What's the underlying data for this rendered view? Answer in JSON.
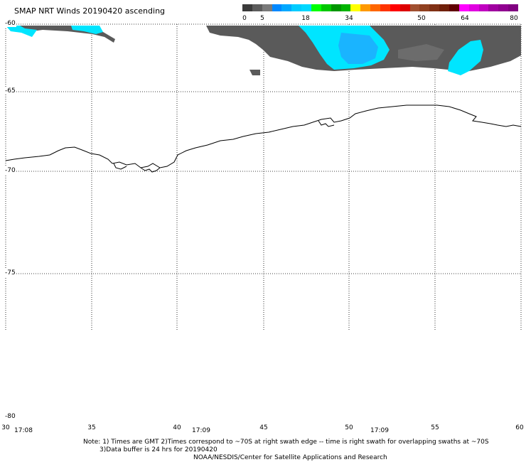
{
  "title": "SMAP NRT Winds 20190420 ascending",
  "colorbar": {
    "labels": [
      "0",
      "5",
      "18",
      "34",
      "50",
      "64",
      "80"
    ],
    "colors": [
      "#3b3b3b",
      "#5c5c5c",
      "#7a7a7a",
      "#0088ff",
      "#00a8ff",
      "#00ccff",
      "#00d8ff",
      "#00ff00",
      "#00c800",
      "#009600",
      "#00b400",
      "#ffff00",
      "#ff9900",
      "#ff6600",
      "#ff3300",
      "#ff0000",
      "#dd0000",
      "#a05030",
      "#904020",
      "#803015",
      "#70200a",
      "#600000",
      "#ff00ff",
      "#e000e0",
      "#c000c0",
      "#a000a0",
      "#900090",
      "#800080"
    ]
  },
  "colors": {
    "land": "#555555",
    "swath_gray": "#5a5a5a",
    "swath_cyan": "#00e5ff",
    "swath_blue": "#1ab4ff",
    "coast": "#000000",
    "grid": "#000000"
  },
  "axes": {
    "lon_labels": [
      "30",
      "35",
      "40",
      "45",
      "50",
      "55",
      "60"
    ],
    "lat_labels": [
      "-60",
      "-65",
      "-70",
      "-75",
      "-80"
    ]
  },
  "times": [
    "17:08",
    "17:09",
    "17:09"
  ],
  "notes": {
    "line1": "Note: 1) Times are GMT 2)Times correspond to ~70S at right swath edge -- time is right swath for overlapping swaths at ~70S",
    "line2": "3)Data buffer is 24 hrs for 20190420",
    "line3": "NOAA/NESDIS/Center for Satellite Applications and Research"
  }
}
